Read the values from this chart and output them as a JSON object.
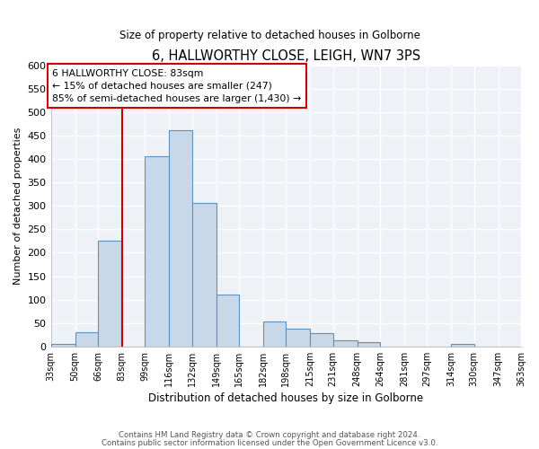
{
  "title": "6, HALLWORTHY CLOSE, LEIGH, WN7 3PS",
  "subtitle": "Size of property relative to detached houses in Golborne",
  "bar_heights": [
    5,
    30,
    225,
    0,
    405,
    462,
    307,
    110,
    0,
    53,
    38,
    28,
    13,
    10,
    0,
    0,
    0,
    5,
    0,
    0
  ],
  "bin_labels": [
    "33sqm",
    "50sqm",
    "66sqm",
    "83sqm",
    "99sqm",
    "116sqm",
    "132sqm",
    "149sqm",
    "165sqm",
    "182sqm",
    "198sqm",
    "215sqm",
    "231sqm",
    "248sqm",
    "264sqm",
    "281sqm",
    "297sqm",
    "314sqm",
    "330sqm",
    "347sqm",
    "363sqm"
  ],
  "bin_edges": [
    33,
    50,
    66,
    83,
    99,
    116,
    132,
    149,
    165,
    182,
    198,
    215,
    231,
    248,
    264,
    281,
    297,
    314,
    330,
    347,
    363
  ],
  "property_size": 83,
  "bar_color": "#c8d8e8",
  "bar_edge_color": "#6090b8",
  "vline_color": "#cc0000",
  "annotation_text": "6 HALLWORTHY CLOSE: 83sqm\n← 15% of detached houses are smaller (247)\n85% of semi-detached houses are larger (1,430) →",
  "annotation_box_color": "#ffffff",
  "annotation_box_edge": "#cc0000",
  "xlabel": "Distribution of detached houses by size in Golborne",
  "ylabel": "Number of detached properties",
  "ylim": [
    0,
    600
  ],
  "yticks": [
    0,
    50,
    100,
    150,
    200,
    250,
    300,
    350,
    400,
    450,
    500,
    550,
    600
  ],
  "footer1": "Contains HM Land Registry data © Crown copyright and database right 2024.",
  "footer2": "Contains public sector information licensed under the Open Government Licence v3.0.",
  "bg_color": "#eef2f7",
  "grid_color": "#ffffff",
  "spine_color": "#aaaaaa"
}
